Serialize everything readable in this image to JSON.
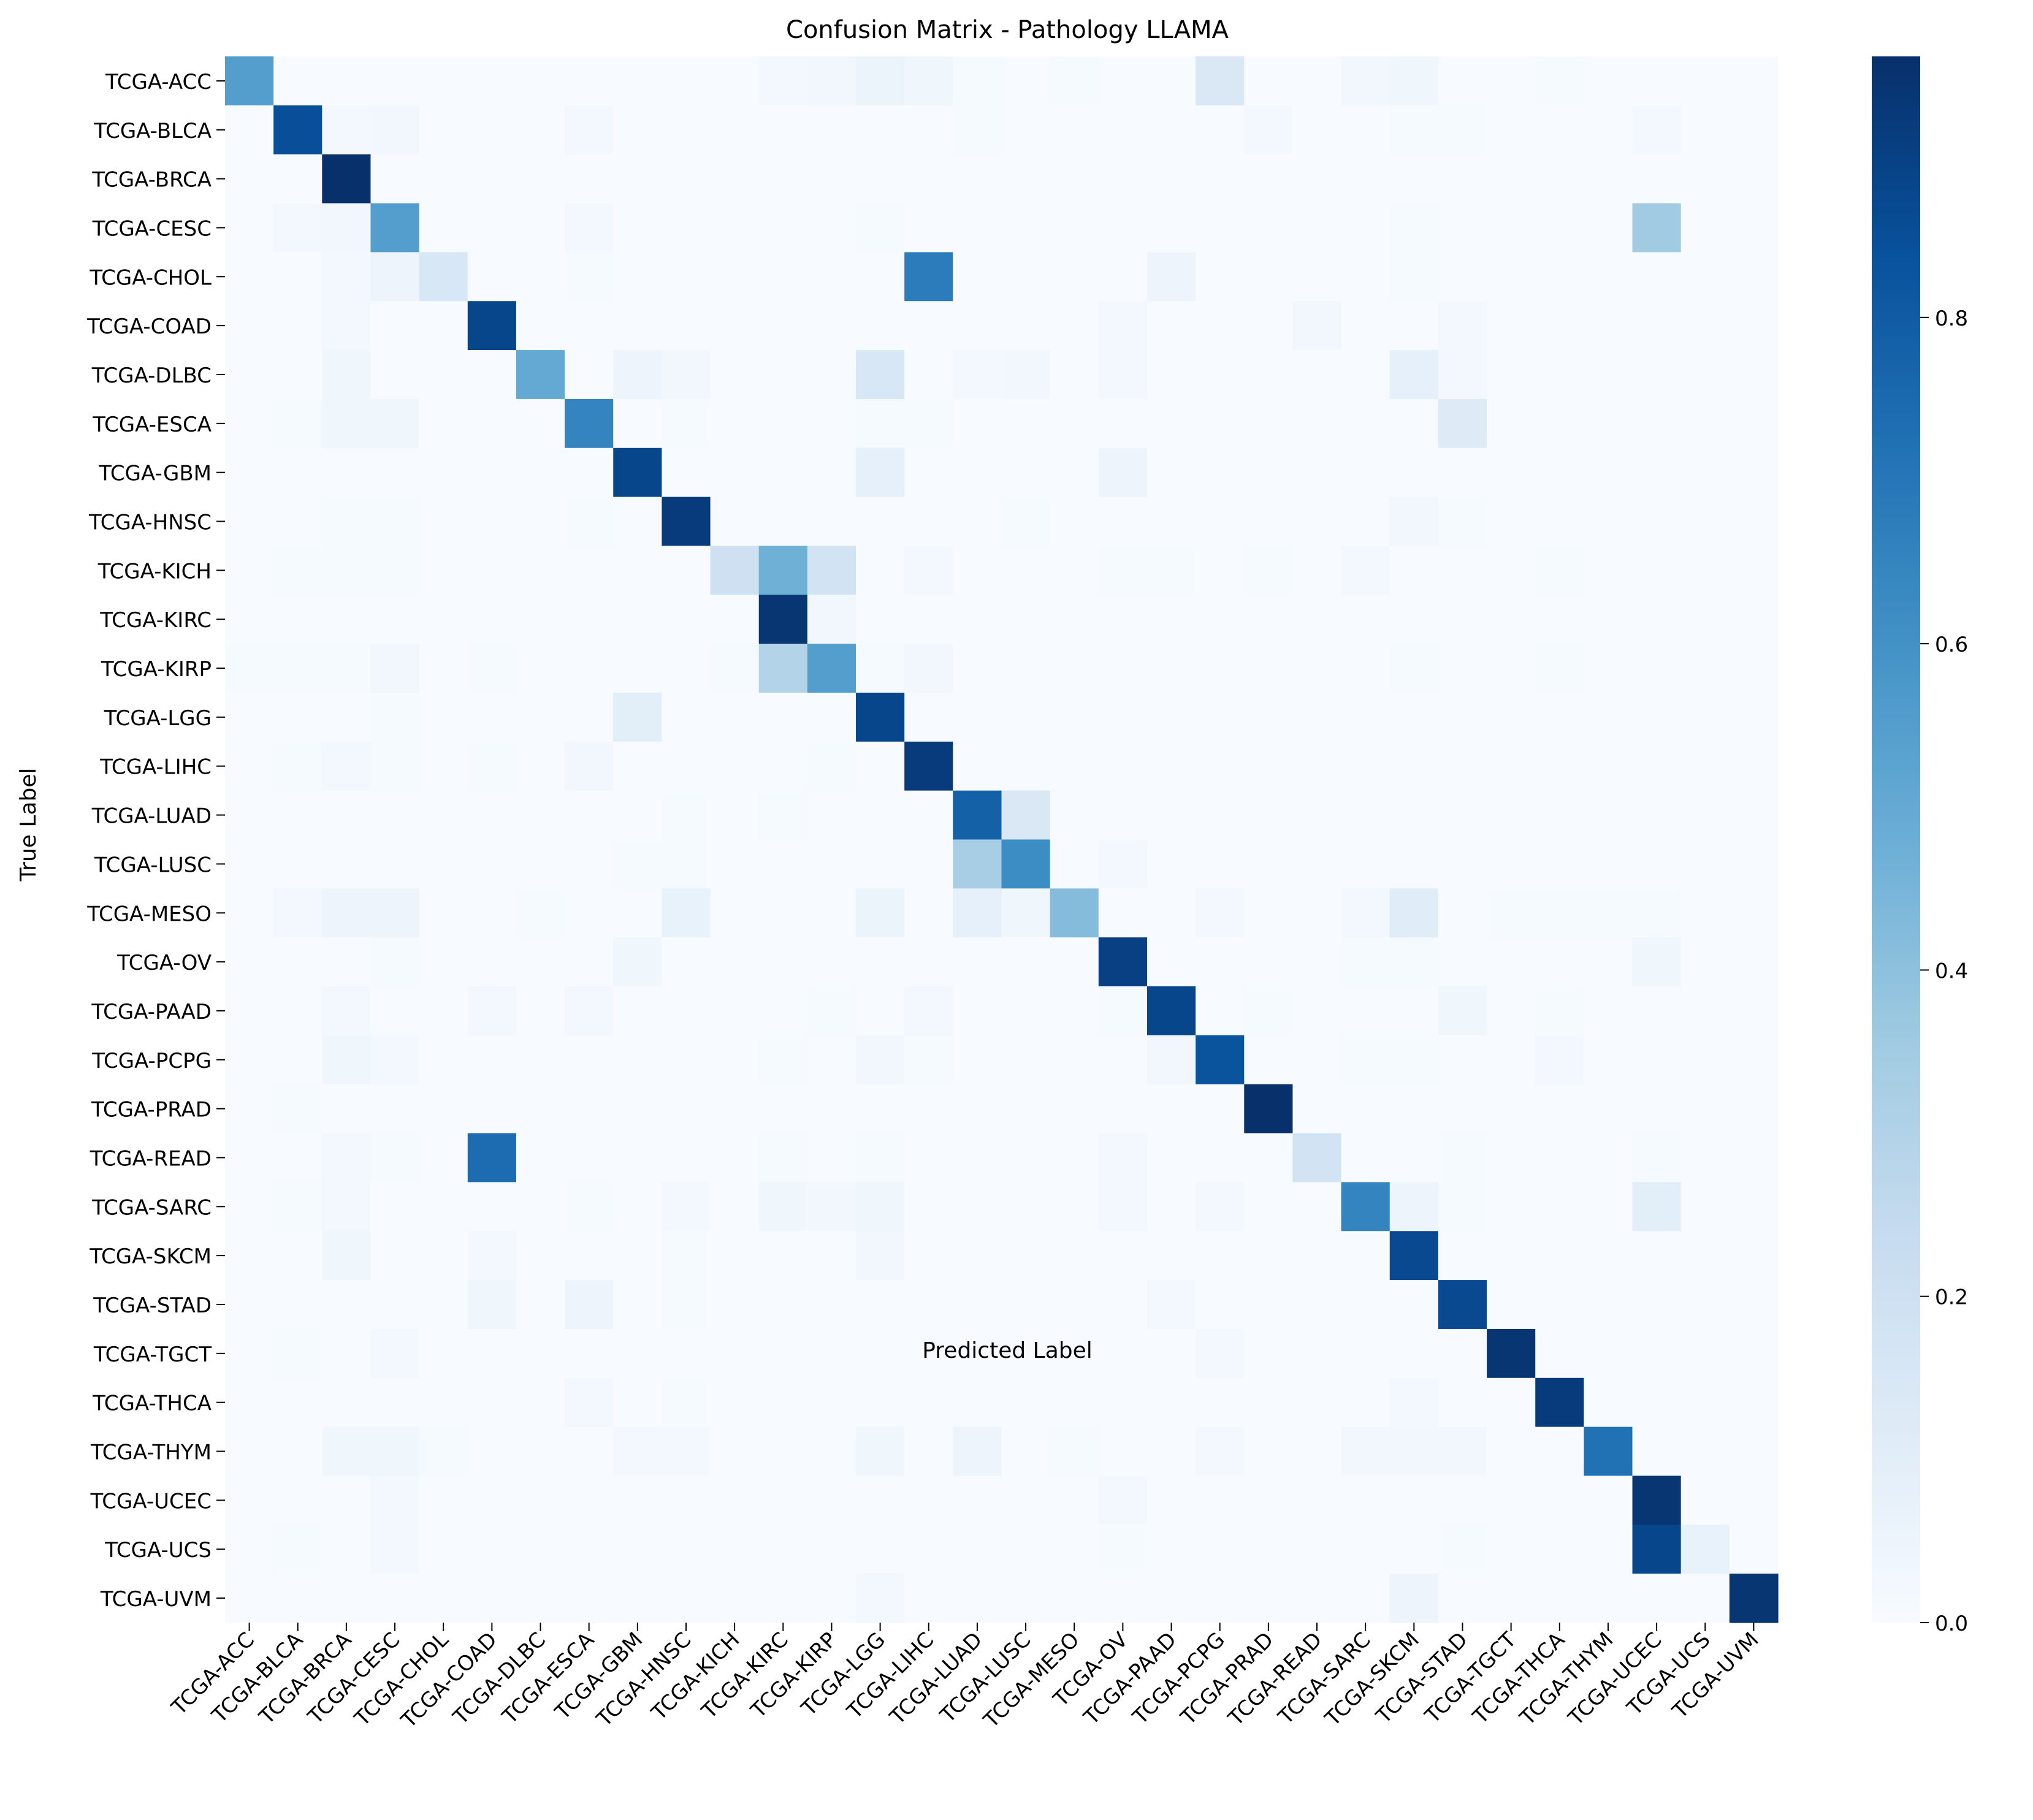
{
  "chart_data": {
    "type": "heatmap",
    "title": "Confusion Matrix - Pathology LLAMA",
    "xlabel": "Predicted Label",
    "ylabel": "True Label",
    "labels": [
      "TCGA-ACC",
      "TCGA-BLCA",
      "TCGA-BRCA",
      "TCGA-CESC",
      "TCGA-CHOL",
      "TCGA-COAD",
      "TCGA-DLBC",
      "TCGA-ESCA",
      "TCGA-GBM",
      "TCGA-HNSC",
      "TCGA-KICH",
      "TCGA-KIRC",
      "TCGA-KIRP",
      "TCGA-LGG",
      "TCGA-LIHC",
      "TCGA-LUAD",
      "TCGA-LUSC",
      "TCGA-MESO",
      "TCGA-OV",
      "TCGA-PAAD",
      "TCGA-PCPG",
      "TCGA-PRAD",
      "TCGA-READ",
      "TCGA-SARC",
      "TCGA-SKCM",
      "TCGA-STAD",
      "TCGA-TGCT",
      "TCGA-THCA",
      "TCGA-THYM",
      "TCGA-UCEC",
      "TCGA-UCS",
      "TCGA-UVM"
    ],
    "colormap": "Blues",
    "vmin": 0.0,
    "vmax": 0.96,
    "colorbar_ticks": [
      0.0,
      0.2,
      0.4,
      0.6,
      0.8
    ],
    "colorbar_tick_labels": [
      "0.0",
      "0.2",
      "0.4",
      "0.6",
      "0.8"
    ],
    "values": [
      [
        0.55,
        0,
        0,
        0,
        0,
        0,
        0,
        0,
        0,
        0,
        0,
        0.02,
        0.03,
        0.06,
        0.04,
        0.01,
        0,
        0.01,
        0,
        0,
        0.14,
        0,
        0,
        0.03,
        0.04,
        0,
        0,
        0.01,
        0,
        0,
        0,
        0
      ],
      [
        0,
        0.85,
        0.02,
        0.03,
        0,
        0,
        0,
        0.02,
        0,
        0,
        0,
        0,
        0,
        0,
        0,
        0.01,
        0,
        0,
        0,
        0,
        0,
        0.02,
        0,
        0,
        0.01,
        0.01,
        0,
        0,
        0,
        0.02,
        0,
        0
      ],
      [
        0,
        0,
        0.96,
        0,
        0,
        0,
        0,
        0,
        0,
        0,
        0,
        0,
        0,
        0,
        0,
        0,
        0,
        0,
        0,
        0,
        0,
        0,
        0,
        0,
        0,
        0,
        0,
        0,
        0,
        0,
        0,
        0
      ],
      [
        0,
        0.02,
        0.03,
        0.55,
        0,
        0,
        0,
        0.02,
        0,
        0,
        0,
        0,
        0,
        0.01,
        0,
        0,
        0,
        0,
        0,
        0,
        0,
        0,
        0,
        0,
        0.01,
        0,
        0,
        0,
        0,
        0.35,
        0,
        0
      ],
      [
        0,
        0,
        0.02,
        0.05,
        0.15,
        0,
        0,
        0.01,
        0,
        0,
        0,
        0,
        0,
        0,
        0.68,
        0,
        0,
        0,
        0,
        0.05,
        0,
        0,
        0,
        0,
        0.01,
        0,
        0,
        0,
        0,
        0,
        0,
        0
      ],
      [
        0,
        0,
        0.02,
        0,
        0,
        0.88,
        0,
        0,
        0,
        0,
        0,
        0,
        0,
        0,
        0,
        0,
        0,
        0,
        0.02,
        0,
        0,
        0,
        0.03,
        0,
        0,
        0.02,
        0,
        0,
        0,
        0,
        0,
        0
      ],
      [
        0,
        0,
        0.04,
        0,
        0,
        0,
        0.5,
        0,
        0.05,
        0.03,
        0,
        0,
        0,
        0.15,
        0,
        0.02,
        0.03,
        0,
        0.02,
        0,
        0,
        0,
        0,
        0,
        0.08,
        0.02,
        0,
        0,
        0,
        0,
        0,
        0
      ],
      [
        0,
        0.01,
        0.04,
        0.04,
        0,
        0,
        0,
        0.65,
        0,
        0.01,
        0,
        0,
        0,
        0.01,
        0.01,
        0,
        0,
        0,
        0,
        0,
        0,
        0,
        0,
        0,
        0,
        0.12,
        0,
        0,
        0,
        0,
        0,
        0
      ],
      [
        0,
        0,
        0,
        0,
        0,
        0,
        0,
        0,
        0.88,
        0,
        0,
        0,
        0,
        0.08,
        0,
        0,
        0,
        0,
        0.05,
        0,
        0,
        0,
        0,
        0,
        0,
        0,
        0,
        0,
        0,
        0,
        0,
        0
      ],
      [
        0,
        0,
        0.01,
        0.01,
        0,
        0,
        0,
        0.01,
        0,
        0.92,
        0,
        0,
        0,
        0,
        0,
        0,
        0.01,
        0,
        0,
        0,
        0,
        0,
        0,
        0,
        0.03,
        0.01,
        0,
        0,
        0,
        0,
        0,
        0
      ],
      [
        0,
        0.01,
        0.01,
        0.01,
        0,
        0,
        0,
        0,
        0,
        0,
        0.2,
        0.47,
        0.18,
        0,
        0.02,
        0,
        0,
        0,
        0.01,
        0.01,
        0,
        0.01,
        0,
        0.02,
        0,
        0,
        0,
        0.01,
        0,
        0,
        0,
        0
      ],
      [
        0,
        0,
        0,
        0,
        0,
        0,
        0,
        0,
        0,
        0,
        0,
        0.94,
        0.03,
        0,
        0,
        0,
        0,
        0,
        0,
        0,
        0,
        0,
        0,
        0,
        0,
        0,
        0,
        0,
        0,
        0,
        0,
        0
      ],
      [
        0.01,
        0.01,
        0.01,
        0.03,
        0,
        0.01,
        0,
        0,
        0,
        0,
        0.01,
        0.3,
        0.55,
        0.01,
        0.03,
        0,
        0,
        0,
        0,
        0,
        0,
        0,
        0,
        0,
        0.01,
        0,
        0,
        0.01,
        0,
        0,
        0,
        0
      ],
      [
        0,
        0,
        0,
        0.01,
        0,
        0,
        0,
        0,
        0.1,
        0,
        0,
        0,
        0,
        0.88,
        0,
        0,
        0,
        0,
        0,
        0,
        0,
        0,
        0,
        0,
        0,
        0,
        0,
        0,
        0,
        0,
        0,
        0
      ],
      [
        0,
        0.01,
        0.02,
        0.01,
        0,
        0.01,
        0,
        0.03,
        0,
        0,
        0,
        0,
        0.01,
        0,
        0.92,
        0,
        0,
        0,
        0,
        0,
        0,
        0,
        0,
        0,
        0,
        0,
        0,
        0,
        0,
        0,
        0,
        0
      ],
      [
        0,
        0,
        0,
        0,
        0,
        0,
        0,
        0,
        0,
        0.01,
        0,
        0.01,
        0,
        0,
        0,
        0.78,
        0.14,
        0,
        0,
        0,
        0,
        0,
        0,
        0,
        0,
        0,
        0,
        0,
        0,
        0,
        0,
        0
      ],
      [
        0,
        0,
        0,
        0,
        0,
        0,
        0,
        0,
        0.01,
        0.01,
        0,
        0,
        0,
        0,
        0,
        0.33,
        0.62,
        0,
        0.02,
        0,
        0,
        0,
        0,
        0,
        0,
        0,
        0,
        0,
        0,
        0,
        0,
        0
      ],
      [
        0,
        0.02,
        0.05,
        0.05,
        0,
        0,
        0.01,
        0,
        0,
        0.07,
        0,
        0,
        0,
        0.06,
        0,
        0.08,
        0.04,
        0.42,
        0,
        0,
        0.02,
        0,
        0,
        0.02,
        0.11,
        0,
        0.01,
        0.01,
        0.01,
        0.01,
        0,
        0
      ],
      [
        0,
        0,
        0,
        0.01,
        0,
        0,
        0,
        0,
        0.04,
        0,
        0,
        0,
        0,
        0,
        0,
        0,
        0,
        0,
        0.9,
        0,
        0,
        0,
        0,
        0.01,
        0.01,
        0,
        0,
        0,
        0,
        0.04,
        0,
        0
      ],
      [
        0,
        0,
        0.02,
        0,
        0,
        0.02,
        0,
        0.02,
        0,
        0,
        0,
        0,
        0.01,
        0,
        0.02,
        0,
        0,
        0,
        0.01,
        0.88,
        0,
        0.01,
        0,
        0,
        0,
        0.04,
        0,
        0.01,
        0,
        0,
        0,
        0
      ],
      [
        0,
        0,
        0.04,
        0.02,
        0,
        0,
        0,
        0,
        0,
        0,
        0,
        0.01,
        0,
        0.03,
        0.01,
        0,
        0,
        0,
        0,
        0.03,
        0.83,
        0,
        0,
        0.01,
        0.01,
        0,
        0,
        0.02,
        0,
        0,
        0,
        0
      ],
      [
        0,
        0.01,
        0,
        0,
        0,
        0,
        0,
        0,
        0,
        0,
        0,
        0,
        0,
        0,
        0,
        0,
        0,
        0,
        0,
        0,
        0,
        0.96,
        0,
        0,
        0,
        0,
        0,
        0,
        0,
        0,
        0,
        0
      ],
      [
        0,
        0,
        0.02,
        0.01,
        0,
        0.74,
        0,
        0,
        0,
        0,
        0,
        0.01,
        0,
        0.01,
        0,
        0,
        0,
        0,
        0.02,
        0,
        0,
        0,
        0.18,
        0,
        0,
        0.01,
        0,
        0,
        0,
        0.01,
        0,
        0
      ],
      [
        0,
        0.01,
        0.02,
        0,
        0,
        0,
        0,
        0.01,
        0,
        0.02,
        0,
        0.04,
        0.03,
        0.04,
        0,
        0,
        0,
        0,
        0.02,
        0,
        0.02,
        0,
        0,
        0.65,
        0.05,
        0.01,
        0,
        0,
        0,
        0.1,
        0,
        0
      ],
      [
        0,
        0,
        0.04,
        0,
        0,
        0.02,
        0,
        0,
        0,
        0.01,
        0,
        0,
        0,
        0.03,
        0,
        0,
        0,
        0,
        0,
        0,
        0,
        0,
        0,
        0,
        0.87,
        0,
        0,
        0,
        0,
        0,
        0,
        0
      ],
      [
        0,
        0,
        0,
        0,
        0,
        0.04,
        0,
        0.05,
        0,
        0.01,
        0,
        0,
        0,
        0,
        0,
        0,
        0,
        0,
        0,
        0.02,
        0,
        0,
        0,
        0,
        0,
        0.87,
        0,
        0,
        0,
        0,
        0,
        0
      ],
      [
        0,
        0.01,
        0,
        0.02,
        0,
        0,
        0,
        0,
        0,
        0,
        0,
        0,
        0,
        0,
        0,
        0,
        0,
        0,
        0,
        0,
        0.02,
        0,
        0,
        0,
        0,
        0,
        0.94,
        0,
        0,
        0,
        0,
        0
      ],
      [
        0,
        0,
        0,
        0,
        0,
        0,
        0,
        0.02,
        0,
        0.01,
        0,
        0,
        0,
        0,
        0,
        0,
        0,
        0,
        0,
        0,
        0,
        0,
        0,
        0,
        0.02,
        0,
        0,
        0.92,
        0,
        0,
        0,
        0
      ],
      [
        0,
        0,
        0.04,
        0.04,
        0.01,
        0,
        0,
        0,
        0.02,
        0.02,
        0,
        0,
        0,
        0.04,
        0,
        0.05,
        0,
        0.01,
        0,
        0,
        0.02,
        0,
        0,
        0.03,
        0.03,
        0.03,
        0,
        0,
        0.72,
        0,
        0,
        0
      ],
      [
        0,
        0,
        0,
        0.02,
        0,
        0,
        0,
        0,
        0,
        0,
        0,
        0,
        0,
        0,
        0,
        0,
        0,
        0,
        0.02,
        0,
        0,
        0,
        0,
        0,
        0,
        0,
        0,
        0,
        0,
        0.94,
        0,
        0
      ],
      [
        0,
        0.01,
        0,
        0.02,
        0,
        0,
        0,
        0,
        0,
        0,
        0,
        0,
        0,
        0,
        0,
        0,
        0,
        0,
        0.01,
        0,
        0,
        0,
        0,
        0,
        0,
        0.01,
        0,
        0,
        0,
        0.88,
        0.07,
        0
      ],
      [
        0,
        0,
        0,
        0,
        0,
        0,
        0,
        0,
        0,
        0,
        0,
        0,
        0,
        0.02,
        0,
        0,
        0,
        0,
        0,
        0,
        0,
        0,
        0,
        0,
        0.05,
        0,
        0,
        0,
        0,
        0,
        0,
        0.94
      ]
    ]
  }
}
